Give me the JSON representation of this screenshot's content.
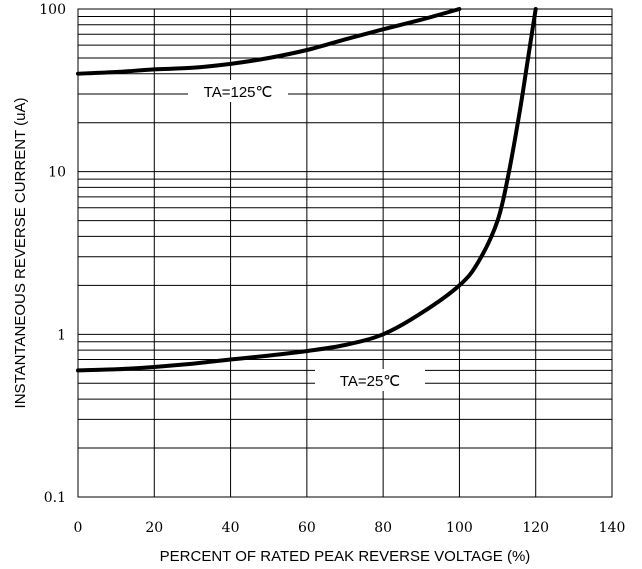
{
  "chart_data": {
    "type": "line",
    "xlabel": "PERCENT OF RATED PEAK REVERSE VOLTAGE (%)",
    "ylabel": "INSTANTANEOUS REVERSE CURRENT (uA)",
    "xlim": [
      0,
      140
    ],
    "ylim": [
      0.1,
      100
    ],
    "yscale": "log",
    "grid": true,
    "x_ticks": [
      "0",
      "20",
      "40",
      "60",
      "80",
      "100",
      "120",
      "140"
    ],
    "y_ticks": [
      "100",
      "10",
      "1",
      "0.1"
    ],
    "series": [
      {
        "name": "TA=125℃",
        "x": [
          0,
          10,
          20,
          30,
          40,
          50,
          60,
          70,
          80,
          90,
          100
        ],
        "y": [
          40,
          41,
          42.5,
          43.5,
          46,
          50,
          56,
          65,
          75,
          86,
          100
        ]
      },
      {
        "name": "TA=25℃",
        "x": [
          0,
          10,
          20,
          30,
          40,
          50,
          60,
          70,
          80,
          90,
          100,
          105,
          110,
          113,
          116,
          118,
          120
        ],
        "y": [
          0.6,
          0.61,
          0.63,
          0.66,
          0.7,
          0.74,
          0.79,
          0.86,
          1.0,
          1.35,
          2.0,
          2.8,
          5.0,
          10,
          25,
          50,
          100
        ]
      }
    ]
  }
}
